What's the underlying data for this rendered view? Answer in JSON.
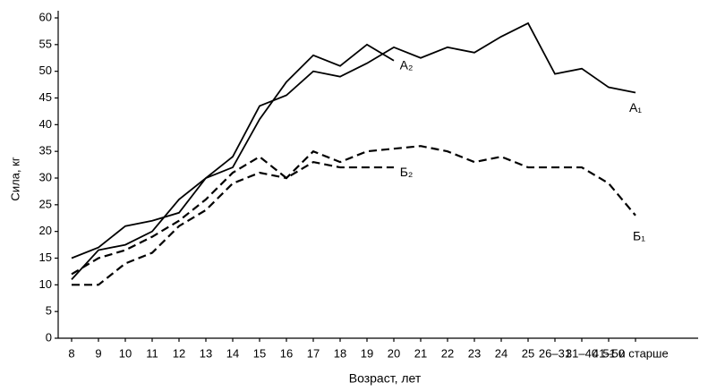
{
  "chart_data": {
    "type": "line",
    "y_label": "Сила, кг",
    "x_label": "Возраст, лет",
    "categories": [
      "8",
      "9",
      "10",
      "11",
      "12",
      "13",
      "14",
      "15",
      "16",
      "17",
      "18",
      "19",
      "20",
      "21",
      "22",
      "23",
      "24",
      "25",
      "26–31",
      "31–40",
      "41–50",
      "51 и старше"
    ],
    "series": [
      {
        "name": "А₁",
        "color": "#000000",
        "dashed": false,
        "values": [
          15,
          17,
          21,
          22,
          23.5,
          30,
          34,
          43.5,
          45.5,
          50,
          49,
          51.5,
          54.5,
          52.5,
          54.5,
          53.5,
          56.5,
          59,
          49.5,
          50.5,
          47,
          46
        ]
      },
      {
        "name": "А₂",
        "color": "#000000",
        "dashed": false,
        "values": [
          11,
          16.5,
          17.5,
          20,
          26,
          30,
          32,
          41,
          48,
          53,
          51,
          55,
          52,
          null,
          null,
          null,
          null,
          null,
          null,
          null,
          null,
          null
        ]
      },
      {
        "name": "Б₁",
        "color": "#000000",
        "dashed": true,
        "values": [
          10,
          10,
          14,
          16,
          21,
          24,
          29,
          31,
          30,
          35,
          33,
          35,
          35.5,
          36,
          35,
          33,
          34,
          32,
          32,
          32,
          29,
          23
        ]
      },
      {
        "name": "Б₂",
        "color": "#000000",
        "dashed": true,
        "values": [
          12,
          15,
          16.5,
          19,
          22,
          26,
          31,
          34,
          30,
          33,
          32,
          32,
          32,
          null,
          null,
          null,
          null,
          null,
          null,
          null,
          null,
          null
        ]
      }
    ],
    "ylim": [
      0,
      60
    ],
    "yticks": [
      0,
      5,
      10,
      15,
      20,
      25,
      30,
      35,
      40,
      45,
      50,
      55,
      60
    ],
    "grid": false
  }
}
